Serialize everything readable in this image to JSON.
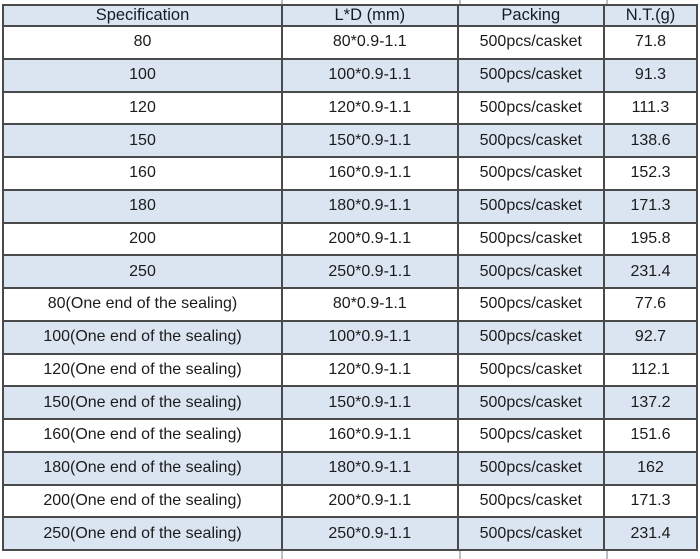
{
  "table": {
    "columns": [
      {
        "key": "spec",
        "label": "Specification"
      },
      {
        "key": "ld",
        "label": "L*D (mm)"
      },
      {
        "key": "packing",
        "label": "Packing"
      },
      {
        "key": "nt",
        "label": "N.T.(g)"
      }
    ],
    "rows": [
      {
        "spec": "80",
        "ld": "80*0.9-1.1",
        "packing": "500pcs/casket",
        "nt": "71.8"
      },
      {
        "spec": "100",
        "ld": "100*0.9-1.1",
        "packing": "500pcs/casket",
        "nt": "91.3"
      },
      {
        "spec": "120",
        "ld": "120*0.9-1.1",
        "packing": "500pcs/casket",
        "nt": "111.3"
      },
      {
        "spec": "150",
        "ld": "150*0.9-1.1",
        "packing": "500pcs/casket",
        "nt": "138.6"
      },
      {
        "spec": "160",
        "ld": "160*0.9-1.1",
        "packing": "500pcs/casket",
        "nt": "152.3"
      },
      {
        "spec": "180",
        "ld": "180*0.9-1.1",
        "packing": "500pcs/casket",
        "nt": "171.3"
      },
      {
        "spec": "200",
        "ld": "200*0.9-1.1",
        "packing": "500pcs/casket",
        "nt": "195.8"
      },
      {
        "spec": "250",
        "ld": "250*0.9-1.1",
        "packing": "500pcs/casket",
        "nt": "231.4"
      },
      {
        "spec": "80(One end of the sealing)",
        "ld": "80*0.9-1.1",
        "packing": "500pcs/casket",
        "nt": "77.6"
      },
      {
        "spec": "100(One end of the sealing)",
        "ld": "100*0.9-1.1",
        "packing": "500pcs/casket",
        "nt": "92.7"
      },
      {
        "spec": "120(One end of the sealing)",
        "ld": "120*0.9-1.1",
        "packing": "500pcs/casket",
        "nt": "112.1"
      },
      {
        "spec": "150(One end of the sealing)",
        "ld": "150*0.9-1.1",
        "packing": "500pcs/casket",
        "nt": "137.2"
      },
      {
        "spec": "160(One end of the sealing)",
        "ld": "160*0.9-1.1",
        "packing": "500pcs/casket",
        "nt": "151.6"
      },
      {
        "spec": "180(One end of the sealing)",
        "ld": "180*0.9-1.1",
        "packing": "500pcs/casket",
        "nt": "162"
      },
      {
        "spec": "200(One end of the sealing)",
        "ld": "200*0.9-1.1",
        "packing": "500pcs/casket",
        "nt": "171.3"
      },
      {
        "spec": "250(One end of the sealing)",
        "ld": "250*0.9-1.1",
        "packing": "500pcs/casket",
        "nt": "231.4"
      }
    ]
  },
  "chart_data": {
    "type": "table",
    "title": "",
    "columns": [
      "Specification",
      "L*D (mm)",
      "Packing",
      "N.T.(g)"
    ],
    "rows": [
      [
        "80",
        "80*0.9-1.1",
        "500pcs/casket",
        71.8
      ],
      [
        "100",
        "100*0.9-1.1",
        "500pcs/casket",
        91.3
      ],
      [
        "120",
        "120*0.9-1.1",
        "500pcs/casket",
        111.3
      ],
      [
        "150",
        "150*0.9-1.1",
        "500pcs/casket",
        138.6
      ],
      [
        "160",
        "160*0.9-1.1",
        "500pcs/casket",
        152.3
      ],
      [
        "180",
        "180*0.9-1.1",
        "500pcs/casket",
        171.3
      ],
      [
        "200",
        "200*0.9-1.1",
        "500pcs/casket",
        195.8
      ],
      [
        "250",
        "250*0.9-1.1",
        "500pcs/casket",
        231.4
      ],
      [
        "80(One end of the sealing)",
        "80*0.9-1.1",
        "500pcs/casket",
        77.6
      ],
      [
        "100(One end of the sealing)",
        "100*0.9-1.1",
        "500pcs/casket",
        92.7
      ],
      [
        "120(One end of the sealing)",
        "120*0.9-1.1",
        "500pcs/casket",
        112.1
      ],
      [
        "150(One end of the sealing)",
        "150*0.9-1.1",
        "500pcs/casket",
        137.2
      ],
      [
        "160(One end of the sealing)",
        "160*0.9-1.1",
        "500pcs/casket",
        151.6
      ],
      [
        "180(One end of the sealing)",
        "180*0.9-1.1",
        "500pcs/casket",
        162
      ],
      [
        "200(One end of the sealing)",
        "200*0.9-1.1",
        "500pcs/casket",
        171.3
      ],
      [
        "250(One end of the sealing)",
        "250*0.9-1.1",
        "500pcs/casket",
        231.4
      ]
    ],
    "layout": {
      "header_row": true,
      "zebra_striping": true,
      "grid": true
    }
  },
  "colors": {
    "header_bg": "#dbe5f1",
    "stripe_bg": "#dbe5f1",
    "row_bg": "#ffffff",
    "border": "#4a4a4a",
    "text": "#1b1b1b"
  }
}
